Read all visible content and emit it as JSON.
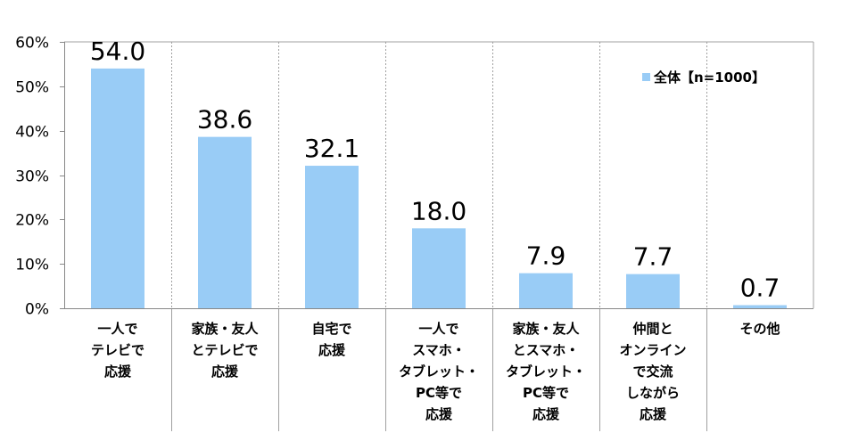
{
  "chart_data": {
    "type": "bar",
    "categories": [
      [
        "一人で",
        "テレビで",
        "応援"
      ],
      [
        "家族・友人",
        "とテレビで",
        "応援"
      ],
      [
        "自宅で",
        "応援"
      ],
      [
        "一人で",
        "スマホ・",
        "タブレット・",
        "PC等で",
        "応援"
      ],
      [
        "家族・友人",
        "とスマホ・",
        "タブレット・",
        "PC等で",
        "応援"
      ],
      [
        "仲間と",
        "オンライン",
        "で交流",
        "しながら",
        "応援"
      ],
      [
        "その他"
      ]
    ],
    "series": [
      {
        "name": "全体【n=1000】",
        "values": [
          54.0,
          38.6,
          32.1,
          18.0,
          7.9,
          7.7,
          0.7
        ]
      }
    ],
    "data_labels": [
      "54.0",
      "38.6",
      "32.1",
      "18.0",
      "7.9",
      "7.7",
      "0.7"
    ],
    "yticks": [
      "0%",
      "10%",
      "20%",
      "30%",
      "40%",
      "50%",
      "60%"
    ],
    "ylim": [
      0,
      60
    ],
    "grid": "vertical dotted separators",
    "legend_position": "top-right",
    "colors": {
      "bar": "#99ccf6",
      "axis": "#888888",
      "grid": "#a0a0a0"
    }
  }
}
